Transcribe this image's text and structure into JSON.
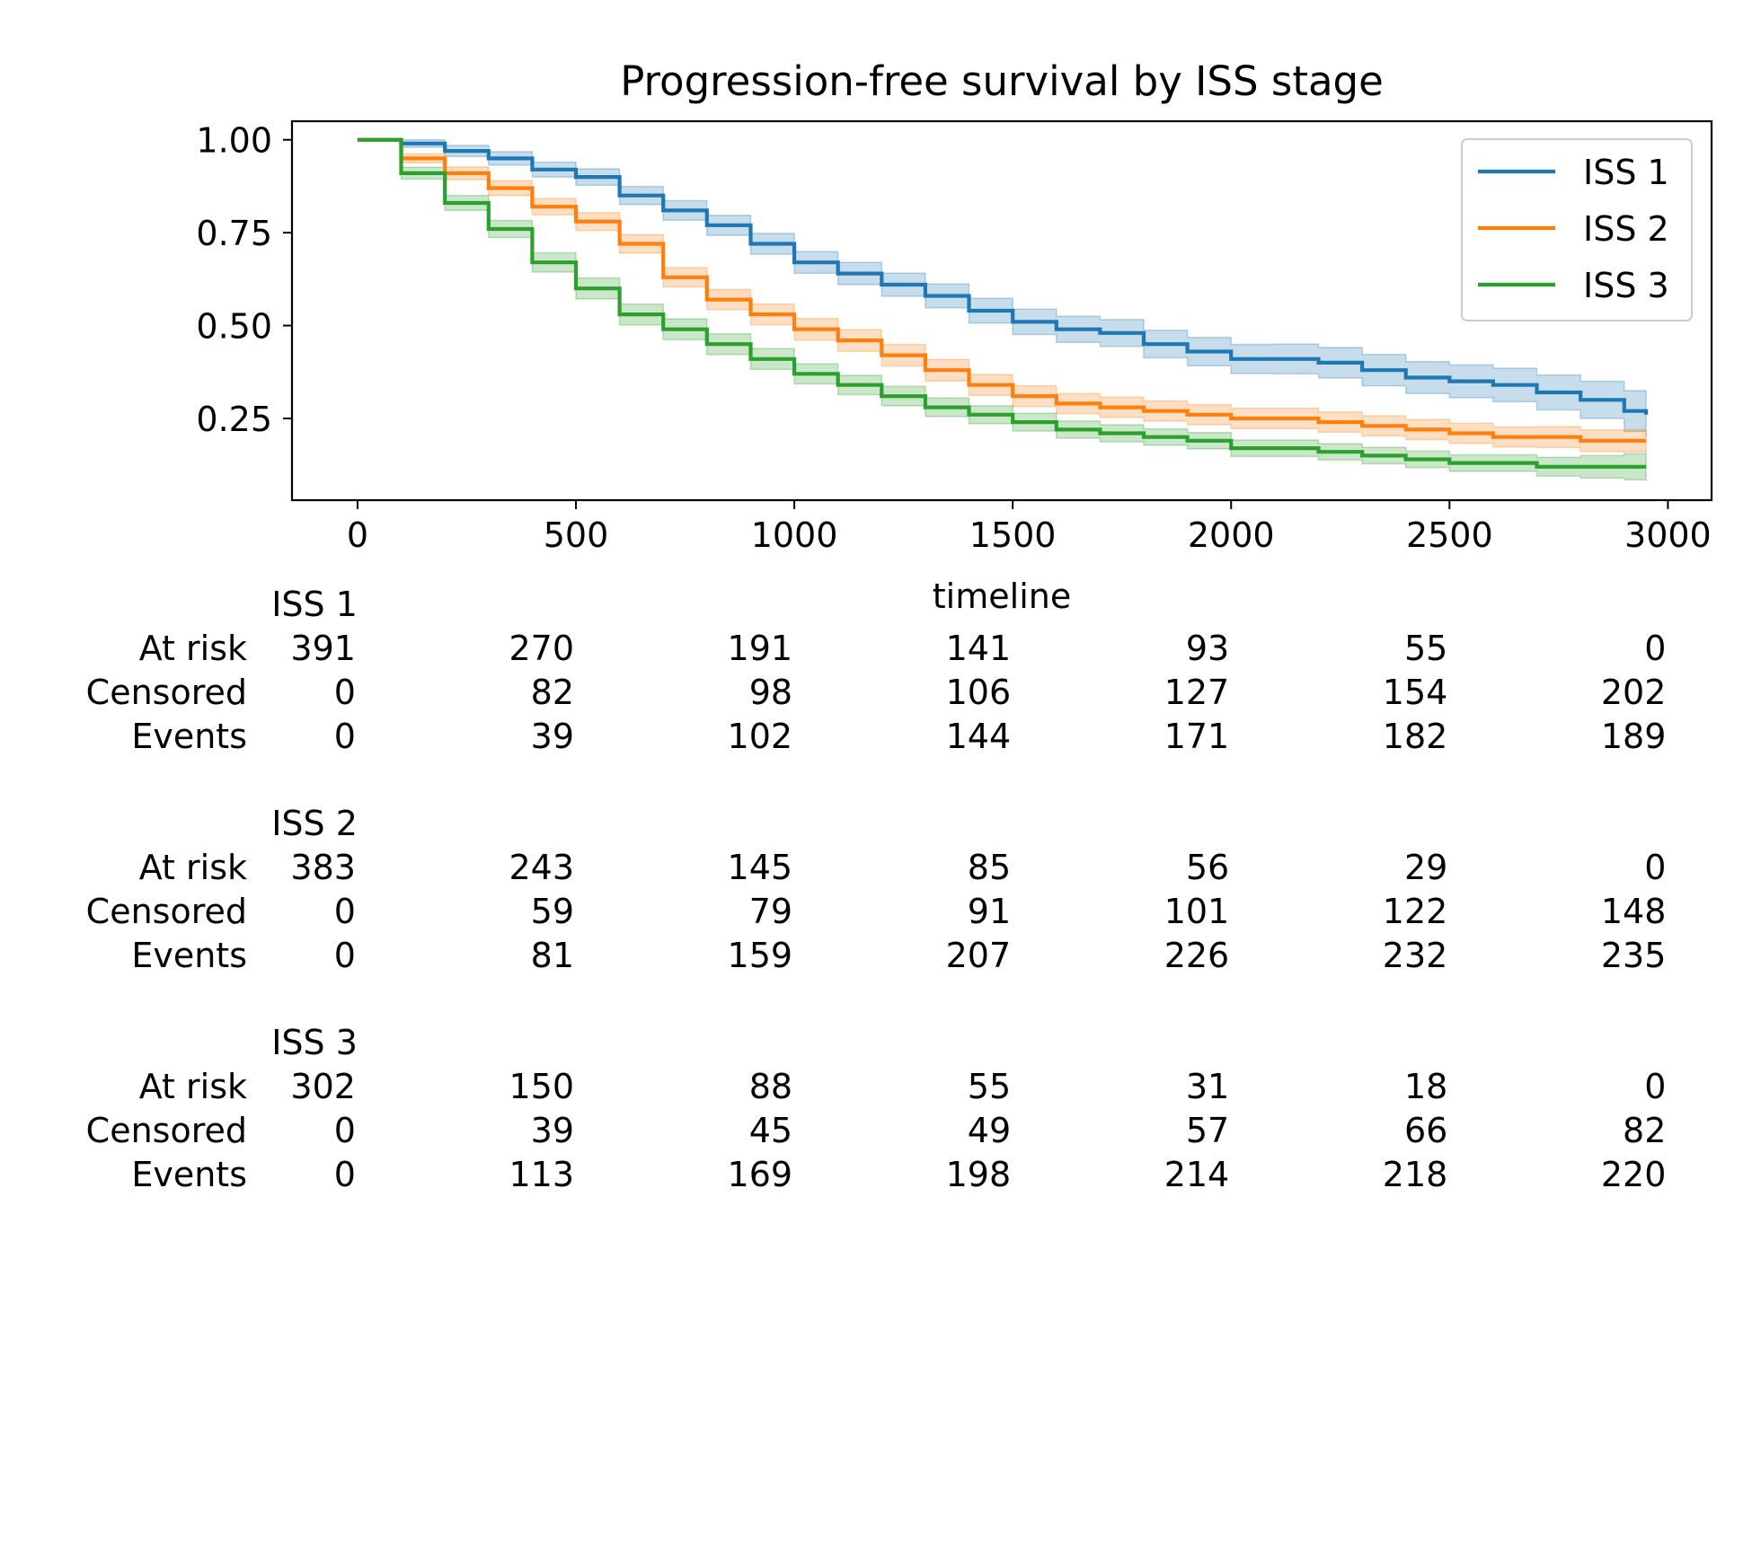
{
  "chart_data": {
    "type": "line",
    "title": "Progression-free survival by ISS stage",
    "xlabel": "timeline",
    "ylabel": "",
    "xlim": [
      -150,
      3100
    ],
    "ylim": [
      0.03,
      1.05
    ],
    "xticks": [
      0,
      500,
      1000,
      1500,
      2000,
      2500,
      3000
    ],
    "xtick_labels": [
      "0",
      "500",
      "1000",
      "1500",
      "2000",
      "2500",
      "3000"
    ],
    "yticks": [
      0.25,
      0.5,
      0.75,
      1.0
    ],
    "ytick_labels": [
      "0.25",
      "0.50",
      "0.75",
      "1.00"
    ],
    "grid": false,
    "legend_position": "top-right",
    "step": true,
    "series": [
      {
        "name": "ISS 1",
        "color": "#1f77b4",
        "points": [
          [
            0,
            1.0
          ],
          [
            100,
            0.99
          ],
          [
            200,
            0.97
          ],
          [
            300,
            0.95
          ],
          [
            400,
            0.92
          ],
          [
            500,
            0.9
          ],
          [
            600,
            0.85
          ],
          [
            700,
            0.81
          ],
          [
            800,
            0.77
          ],
          [
            900,
            0.72
          ],
          [
            1000,
            0.67
          ],
          [
            1100,
            0.64
          ],
          [
            1200,
            0.61
          ],
          [
            1300,
            0.58
          ],
          [
            1400,
            0.54
          ],
          [
            1500,
            0.51
          ],
          [
            1600,
            0.49
          ],
          [
            1700,
            0.48
          ],
          [
            1800,
            0.45
          ],
          [
            1900,
            0.43
          ],
          [
            2000,
            0.41
          ],
          [
            2100,
            0.41
          ],
          [
            2200,
            0.4
          ],
          [
            2300,
            0.38
          ],
          [
            2400,
            0.36
          ],
          [
            2500,
            0.35
          ],
          [
            2600,
            0.34
          ],
          [
            2700,
            0.32
          ],
          [
            2800,
            0.3
          ],
          [
            2900,
            0.27
          ],
          [
            2950,
            0.26
          ]
        ],
        "ci_half_width": [
          0,
          0.01,
          0.015,
          0.018,
          0.02,
          0.022,
          0.024,
          0.026,
          0.027,
          0.028,
          0.029,
          0.03,
          0.031,
          0.032,
          0.033,
          0.034,
          0.035,
          0.036,
          0.037,
          0.038,
          0.039,
          0.04,
          0.041,
          0.042,
          0.043,
          0.044,
          0.045,
          0.047,
          0.05,
          0.055,
          0.06
        ]
      },
      {
        "name": "ISS 2",
        "color": "#ff7f0e",
        "points": [
          [
            0,
            1.0
          ],
          [
            100,
            0.95
          ],
          [
            200,
            0.91
          ],
          [
            300,
            0.87
          ],
          [
            400,
            0.82
          ],
          [
            500,
            0.78
          ],
          [
            600,
            0.72
          ],
          [
            700,
            0.63
          ],
          [
            800,
            0.57
          ],
          [
            900,
            0.53
          ],
          [
            1000,
            0.49
          ],
          [
            1100,
            0.46
          ],
          [
            1200,
            0.42
          ],
          [
            1300,
            0.38
          ],
          [
            1400,
            0.34
          ],
          [
            1500,
            0.31
          ],
          [
            1600,
            0.29
          ],
          [
            1700,
            0.28
          ],
          [
            1800,
            0.27
          ],
          [
            1900,
            0.26
          ],
          [
            2000,
            0.25
          ],
          [
            2100,
            0.25
          ],
          [
            2200,
            0.24
          ],
          [
            2300,
            0.23
          ],
          [
            2400,
            0.22
          ],
          [
            2500,
            0.21
          ],
          [
            2600,
            0.2
          ],
          [
            2700,
            0.2
          ],
          [
            2800,
            0.19
          ],
          [
            2900,
            0.19
          ],
          [
            2950,
            0.19
          ]
        ],
        "ci_half_width": [
          0,
          0.012,
          0.017,
          0.02,
          0.022,
          0.024,
          0.025,
          0.026,
          0.027,
          0.028,
          0.029,
          0.029,
          0.029,
          0.029,
          0.028,
          0.028,
          0.027,
          0.027,
          0.027,
          0.027,
          0.027,
          0.027,
          0.027,
          0.027,
          0.027,
          0.027,
          0.027,
          0.028,
          0.029,
          0.03,
          0.031
        ]
      },
      {
        "name": "ISS 3",
        "color": "#2ca02c",
        "points": [
          [
            0,
            1.0
          ],
          [
            100,
            0.91
          ],
          [
            200,
            0.83
          ],
          [
            300,
            0.76
          ],
          [
            400,
            0.67
          ],
          [
            500,
            0.6
          ],
          [
            600,
            0.53
          ],
          [
            700,
            0.49
          ],
          [
            800,
            0.45
          ],
          [
            900,
            0.41
          ],
          [
            1000,
            0.37
          ],
          [
            1100,
            0.34
          ],
          [
            1200,
            0.31
          ],
          [
            1300,
            0.28
          ],
          [
            1400,
            0.26
          ],
          [
            1500,
            0.24
          ],
          [
            1600,
            0.22
          ],
          [
            1700,
            0.21
          ],
          [
            1800,
            0.2
          ],
          [
            1900,
            0.19
          ],
          [
            2000,
            0.17
          ],
          [
            2100,
            0.17
          ],
          [
            2200,
            0.16
          ],
          [
            2300,
            0.15
          ],
          [
            2400,
            0.14
          ],
          [
            2500,
            0.13
          ],
          [
            2600,
            0.13
          ],
          [
            2700,
            0.12
          ],
          [
            2800,
            0.12
          ],
          [
            2900,
            0.12
          ],
          [
            2950,
            0.12
          ]
        ],
        "ci_half_width": [
          0,
          0.016,
          0.02,
          0.023,
          0.026,
          0.028,
          0.028,
          0.028,
          0.028,
          0.028,
          0.027,
          0.026,
          0.026,
          0.025,
          0.024,
          0.024,
          0.023,
          0.023,
          0.022,
          0.022,
          0.022,
          0.022,
          0.022,
          0.022,
          0.022,
          0.022,
          0.022,
          0.025,
          0.03,
          0.035,
          0.04
        ]
      }
    ],
    "risk_table": {
      "times": [
        0,
        500,
        1000,
        1500,
        2000,
        2500,
        3000
      ],
      "row_labels": [
        "At risk",
        "Censored",
        "Events"
      ],
      "groups": [
        {
          "name": "ISS 1",
          "at_risk": [
            391,
            270,
            191,
            141,
            93,
            55,
            0
          ],
          "censored": [
            0,
            82,
            98,
            106,
            127,
            154,
            202
          ],
          "events": [
            0,
            39,
            102,
            144,
            171,
            182,
            189
          ]
        },
        {
          "name": "ISS 2",
          "at_risk": [
            383,
            243,
            145,
            85,
            56,
            29,
            0
          ],
          "censored": [
            0,
            59,
            79,
            91,
            101,
            122,
            148
          ],
          "events": [
            0,
            81,
            159,
            207,
            226,
            232,
            235
          ]
        },
        {
          "name": "ISS 3",
          "at_risk": [
            302,
            150,
            88,
            55,
            31,
            18,
            0
          ],
          "censored": [
            0,
            39,
            45,
            49,
            57,
            66,
            82
          ],
          "events": [
            0,
            113,
            169,
            198,
            214,
            218,
            220
          ]
        }
      ]
    }
  }
}
